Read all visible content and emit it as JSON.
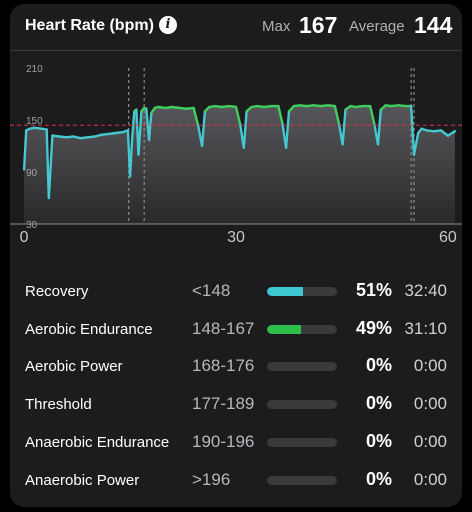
{
  "header": {
    "title": "Heart Rate (bpm)",
    "max_label": "Max",
    "max_value": "167",
    "avg_label": "Average",
    "avg_value": "144"
  },
  "colors": {
    "below_line": "#45c8d0",
    "above_line": "#3fcf5a",
    "average_line": "#e0303a",
    "recovery_bar": "#40c8d2",
    "aerobic_endurance_bar": "#2ebd4a"
  },
  "chart_data": {
    "type": "line",
    "x_ticks": [
      "0",
      "30",
      "60"
    ],
    "y_ticks": [
      "210",
      "150",
      "90",
      "30"
    ],
    "xlim": [
      -2,
      62
    ],
    "ylim": [
      30,
      210
    ],
    "average": 144,
    "grid": false,
    "series": [
      {
        "x": [
          0,
          0.3,
          0.8,
          1.5,
          2.5,
          3.2,
          3.5,
          4,
          5,
          6,
          7,
          8,
          9,
          10,
          11,
          12,
          13,
          14,
          14.7,
          15.0,
          15.3,
          15.6,
          15.9,
          16.2,
          16.6,
          17,
          17.3,
          17.7,
          18,
          18.5,
          19,
          20,
          21,
          22,
          23,
          24,
          24.6,
          25.2,
          25.6,
          26.2,
          27,
          28,
          29,
          30,
          30.6,
          31.1,
          31.5,
          32.2,
          33,
          34,
          35,
          36,
          36.6,
          37.1,
          37.5,
          38.2,
          39,
          40,
          41,
          42,
          43,
          44,
          44.6,
          45.1,
          45.5,
          46.2,
          47,
          48,
          49,
          49.6,
          50.1,
          50.5,
          51.2,
          52,
          53,
          54,
          54.8,
          55.2,
          55.8,
          56.3,
          57,
          58,
          59,
          60,
          61
        ],
        "y": [
          93,
          138,
          140,
          141,
          140,
          139,
          60,
          132,
          131,
          130,
          131,
          129,
          130,
          131,
          133,
          134,
          135,
          136,
          138,
          85,
          130,
          160,
          162,
          110,
          160,
          164,
          163,
          127,
          158,
          164,
          165,
          164,
          165,
          164,
          163,
          164,
          145,
          120,
          160,
          165,
          166,
          165,
          166,
          165,
          145,
          118,
          160,
          165,
          166,
          165,
          166,
          166,
          145,
          118,
          160,
          166,
          167,
          166,
          167,
          166,
          167,
          166,
          145,
          122,
          162,
          166,
          165,
          166,
          166,
          145,
          122,
          162,
          167,
          166,
          167,
          166,
          166,
          110,
          135,
          140,
          138,
          137,
          138,
          132,
          137
        ]
      }
    ],
    "markers_x": [
      14.8,
      17.0,
      54.8,
      55.2
    ]
  },
  "zones": [
    {
      "name": "Recovery",
      "range": "<148",
      "fraction": 0.51,
      "color": "#40c8d2",
      "pct": "51%",
      "time": "32:40"
    },
    {
      "name": "Aerobic Endurance",
      "range": "148-167",
      "fraction": 0.49,
      "color": "#2ebd4a",
      "pct": "49%",
      "time": "31:10"
    },
    {
      "name": "Aerobic Power",
      "range": "168-176",
      "fraction": 0,
      "color": "#3a3a3c",
      "pct": "0%",
      "time": "0:00"
    },
    {
      "name": "Threshold",
      "range": "177-189",
      "fraction": 0,
      "color": "#3a3a3c",
      "pct": "0%",
      "time": "0:00"
    },
    {
      "name": "Anaerobic Endurance",
      "range": "190-196",
      "fraction": 0,
      "color": "#3a3a3c",
      "pct": "0%",
      "time": "0:00"
    },
    {
      "name": "Anaerobic Power",
      "range": ">196",
      "fraction": 0,
      "color": "#3a3a3c",
      "pct": "0%",
      "time": "0:00"
    }
  ]
}
